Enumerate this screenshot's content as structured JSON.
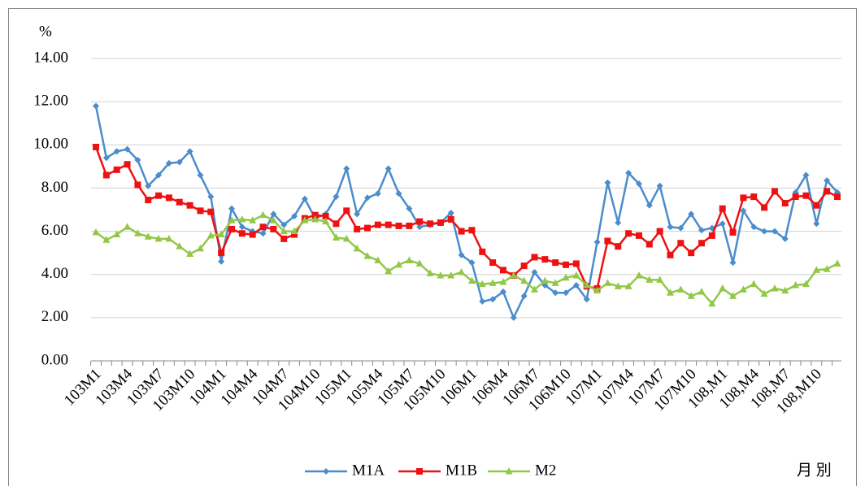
{
  "chart_data": {
    "type": "line",
    "y_unit": "%",
    "x_label": "月 別",
    "categories": [
      "103M1",
      null,
      null,
      "103M4",
      null,
      null,
      "103M7",
      null,
      null,
      "103M10",
      null,
      null,
      "104M1",
      null,
      null,
      "104M4",
      null,
      null,
      "104M7",
      null,
      null,
      "104M10",
      null,
      null,
      "105M1",
      null,
      null,
      "105M4",
      null,
      null,
      "105M7",
      null,
      null,
      "105M10",
      null,
      null,
      "106M1",
      null,
      null,
      "106M4",
      null,
      null,
      "106M7",
      null,
      null,
      "106M10",
      null,
      null,
      "107M1",
      null,
      null,
      "107M4",
      null,
      null,
      "107M7",
      null,
      null,
      "107M10",
      null,
      null,
      "108,M1",
      null,
      null,
      "108,M4",
      null,
      null,
      "108,M7",
      null,
      null,
      "108,M10",
      null,
      null
    ],
    "series": [
      {
        "name": "M1A",
        "color": "#4a8ccc",
        "marker": "diamond",
        "values": [
          11.8,
          9.4,
          9.7,
          9.8,
          9.3,
          8.1,
          8.6,
          9.15,
          9.2,
          9.7,
          8.6,
          7.6,
          4.6,
          7.05,
          6.2,
          6.0,
          5.9,
          6.8,
          6.3,
          6.7,
          7.5,
          6.6,
          6.8,
          7.6,
          8.9,
          6.8,
          7.55,
          7.75,
          8.9,
          7.75,
          7.05,
          6.2,
          6.3,
          6.4,
          6.85,
          4.9,
          4.55,
          2.75,
          2.85,
          3.2,
          2.0,
          3.0,
          4.1,
          3.5,
          3.15,
          3.15,
          3.5,
          2.85,
          5.5,
          8.25,
          6.4,
          8.7,
          8.2,
          7.2,
          8.1,
          6.2,
          6.15,
          6.8,
          6.05,
          6.15,
          6.35,
          4.55,
          6.95,
          6.2,
          6.0,
          6.0,
          5.65,
          7.8,
          8.6,
          6.35,
          8.35,
          7.8
        ]
      },
      {
        "name": "M1B",
        "color": "#ee1111",
        "marker": "square",
        "values": [
          9.9,
          8.6,
          8.85,
          9.1,
          8.15,
          7.45,
          7.65,
          7.55,
          7.35,
          7.2,
          6.95,
          6.9,
          5.0,
          6.1,
          5.9,
          5.85,
          6.2,
          6.1,
          5.65,
          5.85,
          6.6,
          6.75,
          6.7,
          6.35,
          6.95,
          6.1,
          6.15,
          6.3,
          6.3,
          6.25,
          6.25,
          6.45,
          6.35,
          6.4,
          6.55,
          6.0,
          6.05,
          5.05,
          4.55,
          4.2,
          3.95,
          4.4,
          4.8,
          4.7,
          4.55,
          4.45,
          4.5,
          3.45,
          3.35,
          5.55,
          5.3,
          5.9,
          5.8,
          5.4,
          6.0,
          4.9,
          5.45,
          5.0,
          5.45,
          5.8,
          7.05,
          5.95,
          7.55,
          7.6,
          7.1,
          7.85,
          7.3,
          7.6,
          7.65,
          7.2,
          7.85,
          7.6
        ]
      },
      {
        "name": "M2",
        "color": "#92c847",
        "marker": "triangle",
        "values": [
          5.95,
          5.6,
          5.85,
          6.2,
          5.9,
          5.75,
          5.65,
          5.65,
          5.3,
          4.95,
          5.2,
          5.8,
          5.85,
          6.5,
          6.55,
          6.5,
          6.75,
          6.5,
          6.0,
          6.0,
          6.5,
          6.55,
          6.45,
          5.7,
          5.65,
          5.2,
          4.85,
          4.65,
          4.15,
          4.45,
          4.65,
          4.5,
          4.05,
          3.95,
          3.95,
          4.1,
          3.7,
          3.55,
          3.6,
          3.65,
          3.95,
          3.7,
          3.3,
          3.7,
          3.6,
          3.85,
          3.95,
          3.5,
          3.25,
          3.6,
          3.45,
          3.45,
          3.95,
          3.75,
          3.75,
          3.15,
          3.3,
          3.0,
          3.2,
          2.65,
          3.35,
          3.0,
          3.3,
          3.55,
          3.1,
          3.35,
          3.25,
          3.5,
          3.55,
          4.2,
          4.25,
          4.5
        ]
      }
    ],
    "ylim": [
      0,
      14
    ],
    "yticks": [
      {
        "value": 0,
        "label": "0.00"
      },
      {
        "value": 2,
        "label": "2.00"
      },
      {
        "value": 4,
        "label": "4.00"
      },
      {
        "value": 6,
        "label": "6.00"
      },
      {
        "value": 8,
        "label": "8.00"
      },
      {
        "value": 10,
        "label": "10.00"
      },
      {
        "value": 12,
        "label": "12.00"
      },
      {
        "value": 14,
        "label": "14.00"
      }
    ],
    "grid": true,
    "legend": "bottom"
  }
}
